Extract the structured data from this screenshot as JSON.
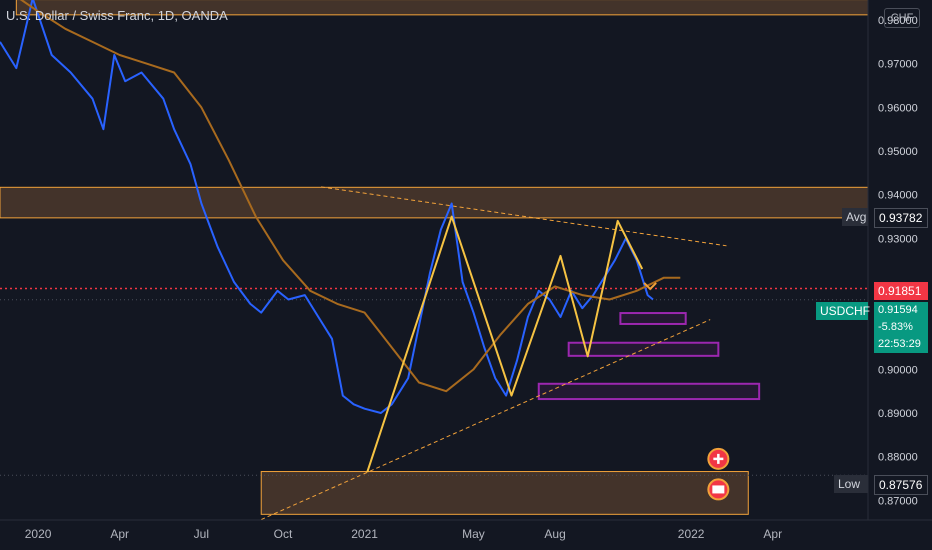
{
  "header": {
    "title": "U.S. Dollar / Swiss Franc, 1D, OANDA",
    "currency": "CHF"
  },
  "axis": {
    "y_ticks": [
      "0.98000",
      "0.97000",
      "0.96000",
      "0.95000",
      "0.94000",
      "0.93000",
      "0.90000",
      "0.89000",
      "0.88000",
      "0.87000"
    ],
    "x_ticks": [
      "2020",
      "Apr",
      "Jul",
      "Oct",
      "2021",
      "May",
      "Aug",
      "2022",
      "Apr"
    ]
  },
  "labels": {
    "avg_name": "Avg",
    "avg_value": "0.93782",
    "last_value": "0.91851",
    "symbol": "USDCHF",
    "symbol_price": "0.91594",
    "change": "-5.83%",
    "countdown": "22:53:29",
    "low_name": "Low",
    "low_value": "0.87576"
  },
  "chart_data": {
    "type": "line",
    "title": "U.S. Dollar / Swiss Franc, 1D, OANDA",
    "xlabel": "",
    "ylabel": "",
    "ylim": [
      0.8655,
      0.9846
    ],
    "x_ticks": [
      "2020",
      "Apr",
      "Jul",
      "Oct",
      "2021",
      "May",
      "Aug",
      "2022",
      "Apr"
    ],
    "x_tick_positions": [
      0,
      3,
      6,
      9,
      12,
      16,
      19,
      24,
      27
    ],
    "xlim": [
      -1.4,
      30.5
    ],
    "series": [
      {
        "values": [
          [
            -1.4,
            0.975
          ],
          [
            -0.8,
            0.969
          ],
          [
            -0.2,
            0.985
          ],
          [
            0.5,
            0.972
          ],
          [
            1.2,
            0.968
          ],
          [
            2.0,
            0.962
          ],
          [
            2.4,
            0.955
          ],
          [
            2.8,
            0.972
          ],
          [
            3.2,
            0.966
          ],
          [
            3.8,
            0.968
          ],
          [
            4.6,
            0.962
          ],
          [
            5.0,
            0.955
          ],
          [
            5.6,
            0.947
          ],
          [
            6.0,
            0.938
          ],
          [
            6.6,
            0.928
          ],
          [
            7.2,
            0.92
          ],
          [
            7.8,
            0.915
          ],
          [
            8.2,
            0.913
          ],
          [
            8.8,
            0.918
          ],
          [
            9.2,
            0.916
          ],
          [
            9.8,
            0.917
          ],
          [
            10.3,
            0.912
          ],
          [
            10.8,
            0.907
          ],
          [
            11.2,
            0.894
          ],
          [
            11.6,
            0.892
          ],
          [
            12.0,
            0.891
          ],
          [
            12.6,
            0.89
          ],
          [
            13.0,
            0.892
          ],
          [
            13.6,
            0.898
          ],
          [
            14.0,
            0.91
          ],
          [
            14.4,
            0.922
          ],
          [
            14.8,
            0.932
          ],
          [
            15.2,
            0.938
          ],
          [
            15.6,
            0.92
          ],
          [
            16.0,
            0.913
          ],
          [
            16.4,
            0.905
          ],
          [
            16.8,
            0.898
          ],
          [
            17.2,
            0.894
          ],
          [
            17.6,
            0.902
          ],
          [
            18.0,
            0.912
          ],
          [
            18.4,
            0.918
          ],
          [
            18.8,
            0.916
          ],
          [
            19.2,
            0.912
          ],
          [
            19.6,
            0.918
          ],
          [
            20.0,
            0.914
          ],
          [
            20.4,
            0.917
          ],
          [
            20.8,
            0.921
          ],
          [
            21.2,
            0.925
          ],
          [
            21.6,
            0.93
          ],
          [
            22.0,
            0.925
          ],
          [
            22.4,
            0.917
          ],
          [
            22.6,
            0.916
          ]
        ]
      },
      {
        "values": [
          [
            -1.4,
            0.988
          ],
          [
            0.0,
            0.982
          ],
          [
            1.0,
            0.978
          ],
          [
            2.0,
            0.975
          ],
          [
            3.0,
            0.972
          ],
          [
            4.0,
            0.97
          ],
          [
            5.0,
            0.968
          ],
          [
            6.0,
            0.96
          ],
          [
            7.0,
            0.948
          ],
          [
            8.0,
            0.935
          ],
          [
            9.0,
            0.925
          ],
          [
            10.0,
            0.918
          ],
          [
            11.0,
            0.915
          ],
          [
            12.0,
            0.913
          ],
          [
            13.0,
            0.905
          ],
          [
            14.0,
            0.897
          ],
          [
            15.0,
            0.895
          ],
          [
            16.0,
            0.9
          ],
          [
            17.0,
            0.908
          ],
          [
            18.0,
            0.915
          ],
          [
            19.0,
            0.919
          ],
          [
            20.0,
            0.917
          ],
          [
            21.0,
            0.916
          ],
          [
            22.0,
            0.918
          ],
          [
            23.0,
            0.921
          ],
          [
            23.6,
            0.921
          ]
        ]
      },
      {
        "values": [
          [
            12.1,
            0.8765
          ],
          [
            15.2,
            0.935
          ],
          [
            17.4,
            0.894
          ],
          [
            19.2,
            0.926
          ],
          [
            20.2,
            0.903
          ],
          [
            21.3,
            0.934
          ],
          [
            22.2,
            0.923
          ]
        ]
      }
    ],
    "markers": {
      "avg": 0.93782,
      "last": 0.91851,
      "current": 0.91594,
      "low": 0.87576
    },
    "zones": [
      {
        "x": [
          -0.8,
          30.5
        ],
        "y": [
          0.9812,
          0.9847
        ]
      },
      {
        "x": [
          -1.4,
          30.5
        ],
        "y": [
          0.9347,
          0.9417
        ]
      },
      {
        "x": [
          21.4,
          23.8
        ],
        "y": [
          0.9104,
          0.9129
        ]
      },
      {
        "x": [
          19.5,
          25.0
        ],
        "y": [
          0.9031,
          0.9061
        ]
      },
      {
        "x": [
          18.4,
          26.5
        ],
        "y": [
          0.8932,
          0.8967
        ]
      },
      {
        "x": [
          8.2,
          26.1
        ],
        "y": [
          0.8668,
          0.8766
        ]
      }
    ],
    "trendlines": [
      {
        "from": [
          8.2,
          0.8656
        ],
        "to": [
          24.7,
          0.9114
        ]
      },
      {
        "from": [
          10.4,
          0.9418
        ],
        "to": [
          25.3,
          0.9283
        ]
      }
    ],
    "grid": false,
    "legend": "none"
  }
}
